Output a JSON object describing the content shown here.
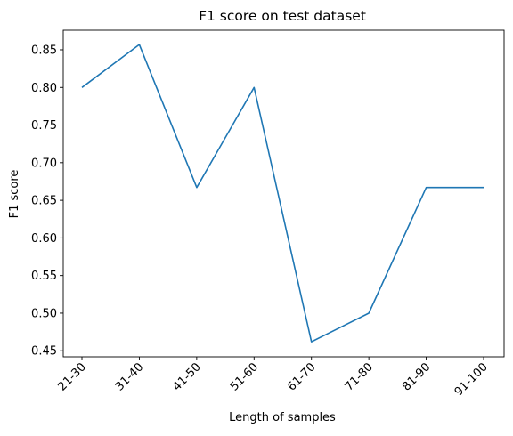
{
  "chart_data": {
    "type": "line",
    "title": "F1 score on test dataset",
    "xlabel": "Length of samples",
    "ylabel": "F1 score",
    "categories": [
      "21-30",
      "31-40",
      "41-50",
      "51-60",
      "61-70",
      "71-80",
      "81-90",
      "91-100"
    ],
    "series": [
      {
        "values": [
          0.8,
          0.857,
          0.667,
          0.8,
          0.462,
          0.5,
          0.667,
          0.667
        ]
      }
    ],
    "yticks": [
      "0.45",
      "0.50",
      "0.55",
      "0.60",
      "0.65",
      "0.70",
      "0.75",
      "0.80",
      "0.85"
    ],
    "ylim": [
      0.442,
      0.876
    ],
    "grid": false,
    "legend": "none",
    "colors": {
      "line": "#1f77b4",
      "axis": "#000000"
    }
  }
}
